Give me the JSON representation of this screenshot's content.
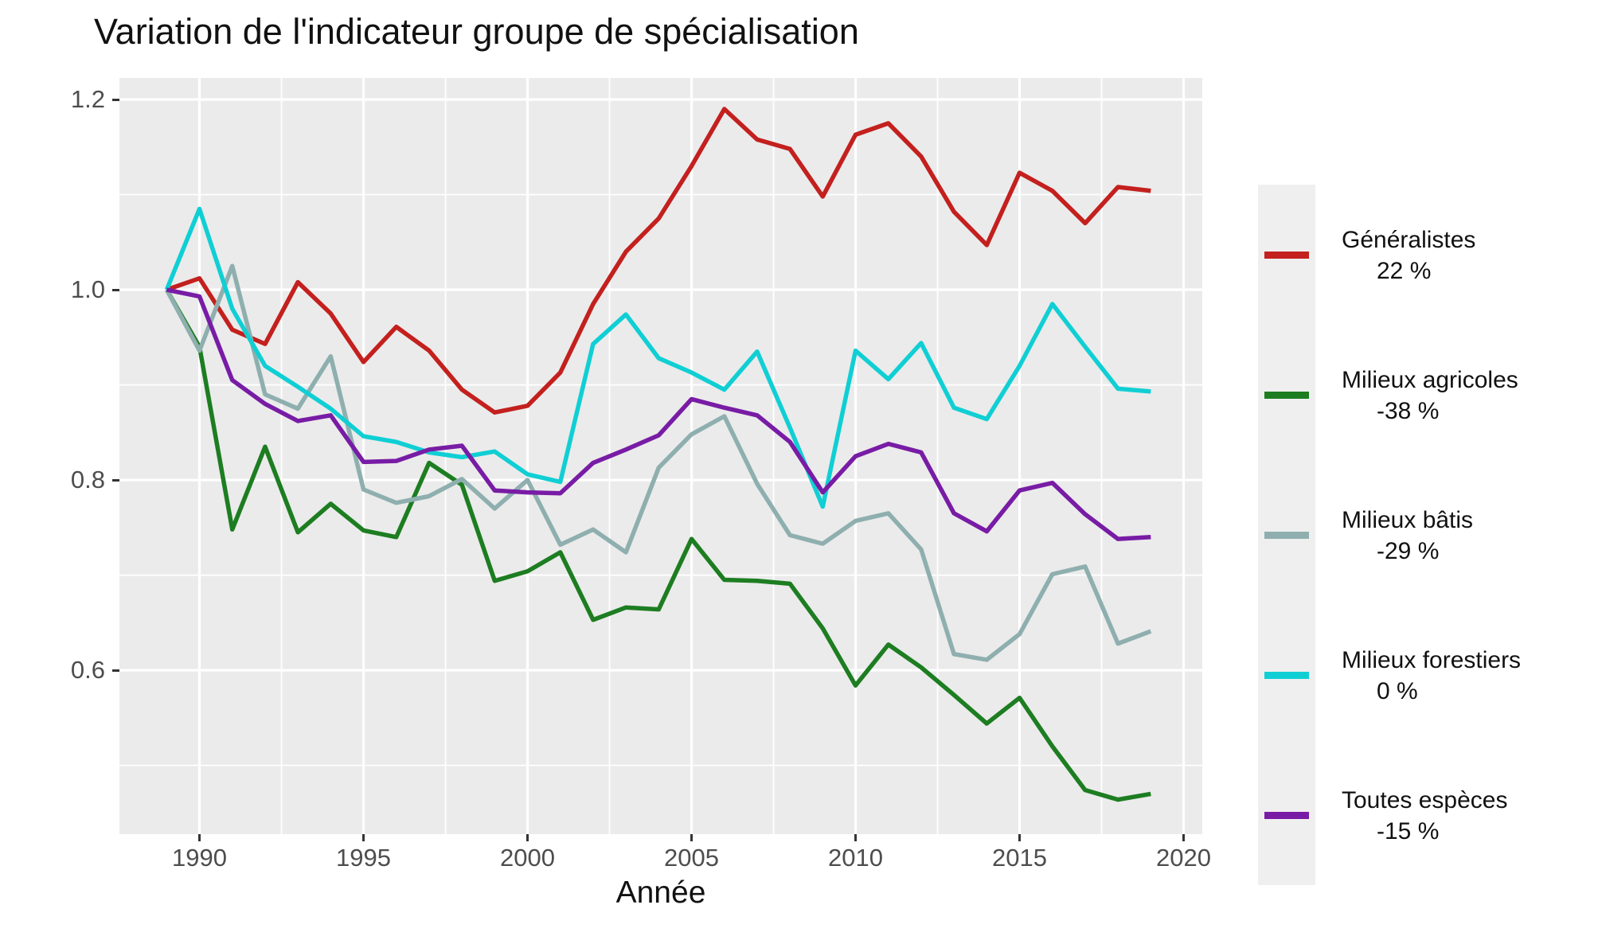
{
  "title": "Variation de l'indicateur groupe de spécialisation",
  "axes": {
    "x": {
      "label": "Année",
      "domain": [
        1987.56,
        2020.57
      ],
      "major_ticks": [
        1990,
        1995,
        2000,
        2005,
        2010,
        2015,
        2020
      ],
      "tick_labels": [
        "1990",
        "1995",
        "2000",
        "2005",
        "2010",
        "2015",
        "2020"
      ],
      "minor_ticks": [
        1992.5,
        1997.5,
        2002.5,
        2007.5,
        2012.5,
        2017.5
      ]
    },
    "y": {
      "domain": [
        0.4277,
        1.2226
      ],
      "major_ticks": [
        0.6,
        0.8,
        1.0,
        1.2
      ],
      "tick_labels": [
        "0.6",
        "0.8",
        "1.0",
        "1.2"
      ],
      "minor_ticks": [
        0.5,
        0.7,
        0.9,
        1.1
      ]
    }
  },
  "style": {
    "panel_bg": "#EBEBEB",
    "grid_color": "#FFFFFF",
    "major_grid_width": 3.2,
    "minor_grid_width": 1.8,
    "line_width": 5.5,
    "tick_color": "#333333",
    "tick_label_color": "#4D4D4D"
  },
  "legend": {
    "entries": [
      {
        "label": "Généralistes",
        "pct": "22 %"
      },
      {
        "label": "Milieux agricoles",
        "pct": "-38 %"
      },
      {
        "label": "Milieux bâtis",
        "pct": "-29 %"
      },
      {
        "label": "Milieux forestiers",
        "pct": "0 %"
      },
      {
        "label": "Toutes espèces",
        "pct": "-15 %"
      }
    ]
  },
  "chart_data": {
    "type": "line",
    "title": "Variation de l'indicateur groupe de spécialisation",
    "xlabel": "Année",
    "ylabel": "",
    "xlim": [
      1987.5,
      2020.5
    ],
    "ylim": [
      0.43,
      1.22
    ],
    "grid": true,
    "legend_position": "right",
    "x": [
      1989,
      1990,
      1991,
      1992,
      1993,
      1994,
      1995,
      1996,
      1997,
      1998,
      1999,
      2000,
      2001,
      2002,
      2003,
      2004,
      2005,
      2006,
      2007,
      2008,
      2009,
      2010,
      2011,
      2012,
      2013,
      2014,
      2015,
      2016,
      2017,
      2018,
      2019
    ],
    "series": [
      {
        "name": "Généralistes",
        "color": "#C3201E",
        "values": [
          1.0,
          1.012,
          0.958,
          0.943,
          1.008,
          0.975,
          0.924,
          0.961,
          0.936,
          0.895,
          0.871,
          0.878,
          0.913,
          0.985,
          1.04,
          1.075,
          1.13,
          1.19,
          1.158,
          1.148,
          1.098,
          1.163,
          1.175,
          1.14,
          1.082,
          1.047,
          1.123,
          1.104,
          1.07,
          1.108,
          1.104
        ]
      },
      {
        "name": "Milieux agricoles",
        "color": "#1D7D21",
        "values": [
          1.0,
          0.94,
          0.748,
          0.835,
          0.745,
          0.775,
          0.747,
          0.74,
          0.818,
          0.795,
          0.694,
          0.704,
          0.724,
          0.653,
          0.666,
          0.664,
          0.738,
          0.695,
          0.694,
          0.691,
          0.644,
          0.584,
          0.627,
          0.603,
          0.574,
          0.544,
          0.571,
          0.52,
          0.474,
          0.464,
          0.47
        ]
      },
      {
        "name": "Milieux bâtis",
        "color": "#8FAFAF",
        "values": [
          1.0,
          0.936,
          1.025,
          0.89,
          0.875,
          0.93,
          0.79,
          0.776,
          0.783,
          0.801,
          0.77,
          0.8,
          0.732,
          0.748,
          0.724,
          0.813,
          0.848,
          0.867,
          0.796,
          0.742,
          0.733,
          0.757,
          0.765,
          0.727,
          0.617,
          0.611,
          0.638,
          0.701,
          0.709,
          0.628,
          0.641
        ]
      },
      {
        "name": "Milieux forestiers",
        "color": "#10CFD4",
        "values": [
          1.0,
          1.085,
          0.98,
          0.92,
          0.898,
          0.875,
          0.846,
          0.84,
          0.829,
          0.824,
          0.83,
          0.806,
          0.798,
          0.943,
          0.974,
          0.928,
          0.913,
          0.895,
          0.935,
          0.855,
          0.772,
          0.936,
          0.906,
          0.944,
          0.876,
          0.864,
          0.92,
          0.985,
          0.94,
          0.896,
          0.893
        ]
      },
      {
        "name": "Toutes espèces",
        "color": "#781CA5",
        "values": [
          1.0,
          0.993,
          0.905,
          0.88,
          0.862,
          0.868,
          0.819,
          0.82,
          0.832,
          0.836,
          0.789,
          0.787,
          0.786,
          0.818,
          0.832,
          0.847,
          0.885,
          0.876,
          0.868,
          0.84,
          0.787,
          0.825,
          0.838,
          0.829,
          0.765,
          0.746,
          0.789,
          0.797,
          0.764,
          0.738,
          0.74
        ]
      }
    ]
  }
}
